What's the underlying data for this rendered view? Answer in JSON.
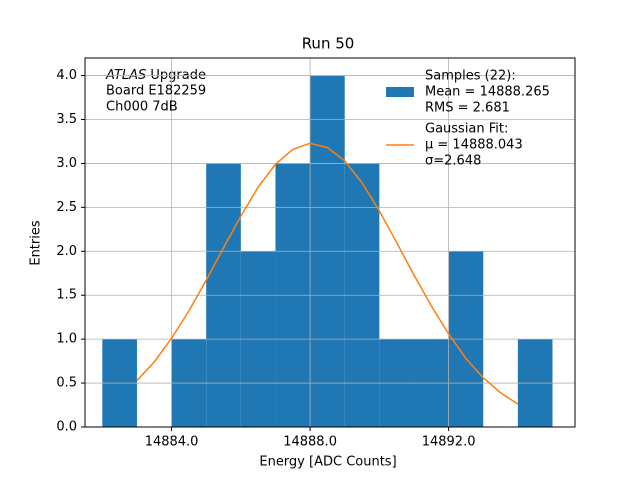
{
  "chart_data": {
    "type": "histogram",
    "title": "Run 50",
    "xlabel": "Energy [ADC Counts]",
    "ylabel": "Entries",
    "annotation": {
      "italic": "ATLAS",
      "rest": " Upgrade",
      "lines": [
        " Board E182259",
        " Ch000 7dB"
      ]
    },
    "bins": [
      14882,
      14883,
      14884,
      14885,
      14886,
      14887,
      14888,
      14889,
      14890,
      14891,
      14892,
      14893,
      14894,
      14895
    ],
    "series": [
      {
        "name": "Samples (22):",
        "details": [
          " Mean = 14888.265",
          " RMS = 2.681"
        ],
        "color": "#1f77b4",
        "values": [
          1,
          0,
          1,
          3,
          2,
          3,
          4,
          3,
          1,
          1,
          2,
          0,
          1
        ]
      },
      {
        "name": "Gaussian Fit:",
        "details": [
          " μ = 14888.043",
          " σ=2.648"
        ],
        "color": "#ff7f0e",
        "x": [
          14883,
          14883.5,
          14884,
          14884.5,
          14885,
          14885.5,
          14886,
          14886.5,
          14887,
          14887.5,
          14888,
          14888.5,
          14889,
          14889.5,
          14890,
          14890.5,
          14891,
          14891.5,
          14892,
          14892.5,
          14893,
          14893.5,
          14894
        ],
        "values": [
          0.53,
          0.74,
          1.01,
          1.32,
          1.67,
          2.04,
          2.4,
          2.73,
          2.99,
          3.16,
          3.23,
          3.18,
          3.03,
          2.78,
          2.46,
          2.1,
          1.73,
          1.38,
          1.06,
          0.78,
          0.56,
          0.39,
          0.26
        ]
      }
    ],
    "xlim": [
      14881.5,
      14895.65
    ],
    "ylim": [
      0,
      4.2
    ],
    "xticks": [
      {
        "value": 14884,
        "label": "14884.0"
      },
      {
        "value": 14888,
        "label": "14888.0"
      },
      {
        "value": 14892,
        "label": "14892.0"
      }
    ],
    "yticks": [
      {
        "value": 0,
        "label": "0.0"
      },
      {
        "value": 0.5,
        "label": "0.5"
      },
      {
        "value": 1,
        "label": "1.0"
      },
      {
        "value": 1.5,
        "label": "1.5"
      },
      {
        "value": 2,
        "label": "2.0"
      },
      {
        "value": 2.5,
        "label": "2.5"
      },
      {
        "value": 3,
        "label": "3.0"
      },
      {
        "value": 3.5,
        "label": "3.5"
      },
      {
        "value": 4,
        "label": "4.0"
      }
    ],
    "grid": true,
    "legend": "upper right"
  }
}
